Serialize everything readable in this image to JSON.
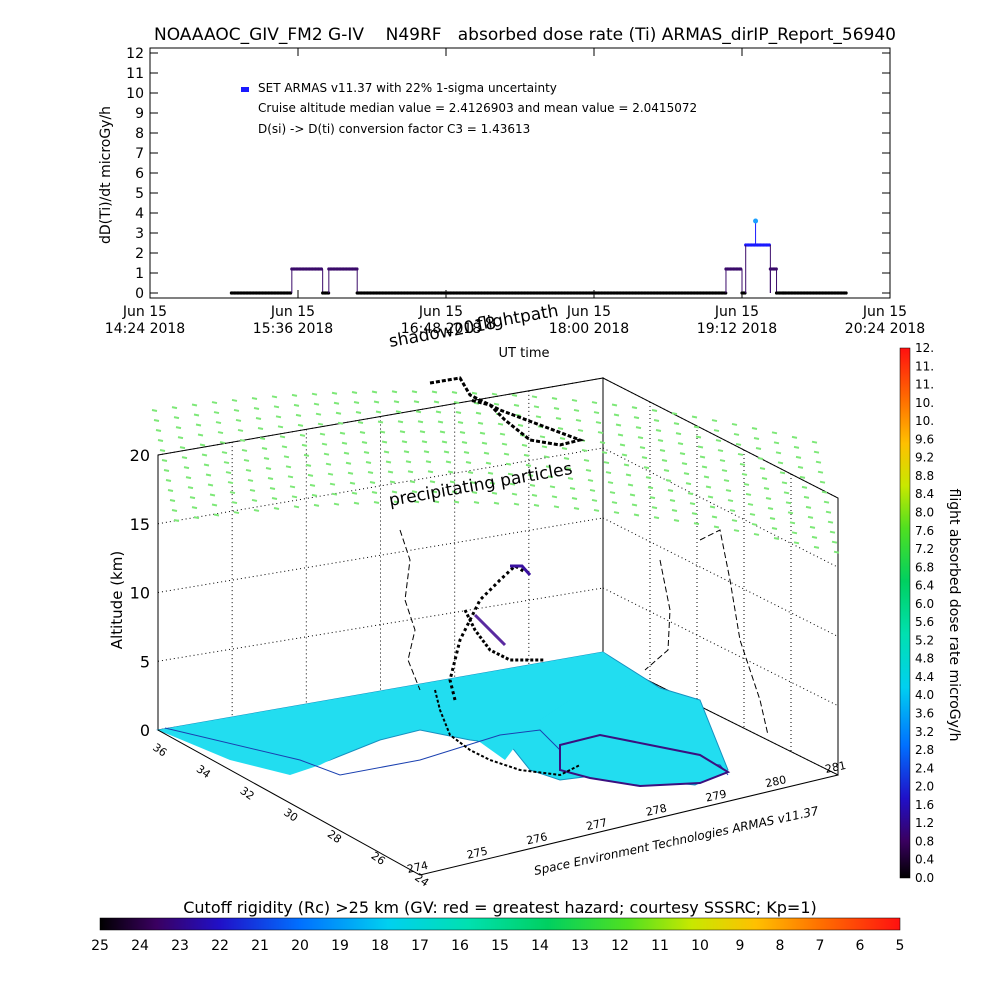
{
  "header": {
    "title": "NOAAAOC_GIV_FM2 G-IV    N49RF   absorbed dose rate (Ti) ARMAS_dirIP_Report_56940"
  },
  "chart_data": [
    {
      "type": "scatter",
      "title": "NOAAAOC_GIV_FM2 G-IV    N49RF   absorbed dose rate (Ti) ARMAS_dirIP_Report_56940",
      "xlabel": "UT time",
      "ylabel": "dD(Ti)/dt microGy/h",
      "ylim": [
        0,
        12
      ],
      "yticks": [
        "0",
        "1",
        "2",
        "3",
        "4",
        "5",
        "6",
        "7",
        "8",
        "9",
        "10",
        "11",
        "12"
      ],
      "xlim_hours": [
        14.4,
        20.4
      ],
      "xticks": [
        {
          "h": 14.4,
          "line1": "Jun 15",
          "line2": "14:24 2018"
        },
        {
          "h": 15.6,
          "line1": "Jun 15",
          "line2": "15:36 2018"
        },
        {
          "h": 16.8,
          "line1": "Jun 15",
          "line2": "16:48 2018"
        },
        {
          "h": 18.0,
          "line1": "Jun 15",
          "line2": "18:00 2018"
        },
        {
          "h": 19.2,
          "line1": "Jun 15",
          "line2": "19:12 2018"
        },
        {
          "h": 20.4,
          "line1": "Jun 15",
          "line2": "20:24 2018"
        }
      ],
      "grid": false,
      "legend": {
        "position": "top-left",
        "series_name": "SET ARMAS v11.37 with 22% 1-sigma uncertainty",
        "note1": "Cruise altitude median value = 2.4126903 and mean value = 2.0415072",
        "note2": "D(si) -> D(ti) conversion factor C3 = 1.43613"
      },
      "series": [
        {
          "name": "SET ARMAS v11.37 with 22% 1-sigma uncertainty",
          "segments": [
            {
              "start": 15.06,
              "end": 15.55,
              "value": 0
            },
            {
              "start": 15.55,
              "end": 15.8,
              "value": 1.2
            },
            {
              "start": 15.8,
              "end": 15.85,
              "value": 0
            },
            {
              "start": 15.85,
              "end": 16.08,
              "value": 1.2
            },
            {
              "start": 16.08,
              "end": 19.07,
              "value": 0
            },
            {
              "start": 19.07,
              "end": 19.2,
              "value": 1.2
            },
            {
              "start": 19.2,
              "end": 19.23,
              "value": 0
            },
            {
              "start": 19.23,
              "end": 19.43,
              "value": 2.4
            },
            {
              "start": 19.43,
              "end": 19.48,
              "value": 1.2
            },
            {
              "start": 19.48,
              "end": 19.54,
              "value": 0
            },
            {
              "start": 19.54,
              "end": 20.05,
              "value": 0
            }
          ],
          "peak": {
            "x": 19.31,
            "value": 3.6
          }
        }
      ]
    },
    {
      "type": "scatter",
      "zlabel": "Altitude (km)",
      "zticks": [
        "0",
        "5",
        "10",
        "15",
        "20"
      ],
      "lat_ticks": [
        "36",
        "34",
        "32",
        "30",
        "28",
        "26",
        "24"
      ],
      "lon_ticks": [
        "274",
        "275",
        "276",
        "277",
        "278",
        "279",
        "280",
        "281"
      ],
      "annotations": [
        "shadow2018",
        "flightpath",
        "precipitating particles"
      ],
      "credit": "Space Environment Technologies ARMAS v11.37",
      "colorbar": {
        "label": "flight absorbed dose rate microGy/h",
        "ticks": [
          "0.0",
          "0.4",
          "0.8",
          "1.2",
          "1.6",
          "2.0",
          "2.4",
          "2.8",
          "3.2",
          "3.6",
          "4.0",
          "4.4",
          "4.8",
          "5.2",
          "5.6",
          "6.0",
          "6.4",
          "6.8",
          "7.2",
          "7.6",
          "8.0",
          "8.4",
          "8.8",
          "9.2",
          "9.6",
          "10.",
          "10.",
          "11.",
          "11.",
          "12."
        ]
      },
      "sea_color": "#1fe0f0",
      "particle_color": "#7ee878"
    },
    {
      "type": "heatmap",
      "title": "Cutoff rigidity (Rc) >25 km (GV: red = greatest hazard; courtesy SSSRC; Kp=1)",
      "ticks": [
        "25",
        "24",
        "23",
        "22",
        "21",
        "20",
        "19",
        "18",
        "17",
        "16",
        "15",
        "14",
        "13",
        "12",
        "11",
        "10",
        "9",
        "8",
        "7",
        "6",
        "5"
      ]
    }
  ]
}
